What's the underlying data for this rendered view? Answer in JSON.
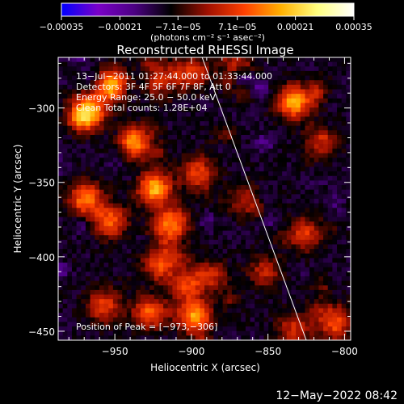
{
  "chart_data": {
    "type": "heatmap",
    "title": "Reconstructed RHESSI Image",
    "xlabel": "Heliocentric X (arcsec)",
    "ylabel": "Heliocentric Y (arcsec)",
    "xlim": [
      -987,
      -796
    ],
    "ylim": [
      -456,
      -266
    ],
    "x_ticks": [
      -950,
      -900,
      -850,
      -800
    ],
    "y_ticks": [
      -450,
      -400,
      -350,
      -300
    ],
    "x_tick_labels": [
      "−950",
      "−900",
      "−850",
      "−800"
    ],
    "y_tick_labels": [
      "−450",
      "−400",
      "−350",
      "−300"
    ],
    "colorbar": {
      "range": [
        -0.00035,
        0.00035
      ],
      "ticks": [
        -0.00035,
        -0.00021,
        -7.1e-05,
        7.1e-05,
        0.00021,
        0.00035
      ],
      "tick_labels": [
        "−0.00035",
        "−0.00021",
        "−7.1e−05",
        "7.1e−05",
        "0.00021",
        "0.00035"
      ],
      "unit_label": "(photons cm⁻² s⁻¹ asec⁻²)",
      "colors": [
        "#0000ff",
        "#7a00c8",
        "#4b0082",
        "#000000",
        "#a01000",
        "#ff4000",
        "#ffb000",
        "#ffff80",
        "#ffffff"
      ]
    },
    "annotations": [
      "13−Jul−2011 01:27:44.000 to 01:33:44.000",
      "Detectors: 3F 4F 5F 6F 7F 8F, Att 0",
      "Energy Range: 25.0 − 50.0 keV",
      "Clean    Total counts: 1.28E+04"
    ],
    "peak_label": "Position of Peak = [−973,−306]",
    "limb_line": {
      "from": [
        -893,
        -266
      ],
      "to": [
        -825,
        -456
      ]
    },
    "hotspots": [
      {
        "x": -968,
        "y": -303,
        "intensity": 0.00035
      },
      {
        "x": -952,
        "y": -285,
        "intensity": 0.00028
      },
      {
        "x": -937,
        "y": -324,
        "intensity": 0.00024
      },
      {
        "x": -918,
        "y": -282,
        "intensity": 0.00018
      },
      {
        "x": -899,
        "y": -276,
        "intensity": 0.00016
      },
      {
        "x": -870,
        "y": -268,
        "intensity": 0.00013
      },
      {
        "x": -833,
        "y": -296,
        "intensity": 0.00029
      },
      {
        "x": -815,
        "y": -321,
        "intensity": 0.00014
      },
      {
        "x": -969,
        "y": -361,
        "intensity": 0.00024
      },
      {
        "x": -953,
        "y": -376,
        "intensity": 0.00021
      },
      {
        "x": -924,
        "y": -354,
        "intensity": 0.00028
      },
      {
        "x": -913,
        "y": -378,
        "intensity": 0.00025
      },
      {
        "x": -896,
        "y": -343,
        "intensity": 0.00017
      },
      {
        "x": -920,
        "y": -405,
        "intensity": 0.0002
      },
      {
        "x": -903,
        "y": -418,
        "intensity": 0.00016
      },
      {
        "x": -898,
        "y": -440,
        "intensity": 0.00027
      },
      {
        "x": -927,
        "y": -437,
        "intensity": 0.00022
      },
      {
        "x": -957,
        "y": -433,
        "intensity": 0.00018
      },
      {
        "x": -887,
        "y": -413,
        "intensity": 0.00014
      },
      {
        "x": -826,
        "y": -385,
        "intensity": 0.00017
      },
      {
        "x": -852,
        "y": -410,
        "intensity": 0.00013
      },
      {
        "x": -808,
        "y": -443,
        "intensity": 0.0002
      },
      {
        "x": -833,
        "y": -449,
        "intensity": 0.00015
      },
      {
        "x": -866,
        "y": -361,
        "intensity": 0.00012
      }
    ]
  },
  "footer": {
    "date": "12−May−2022 08:42"
  }
}
